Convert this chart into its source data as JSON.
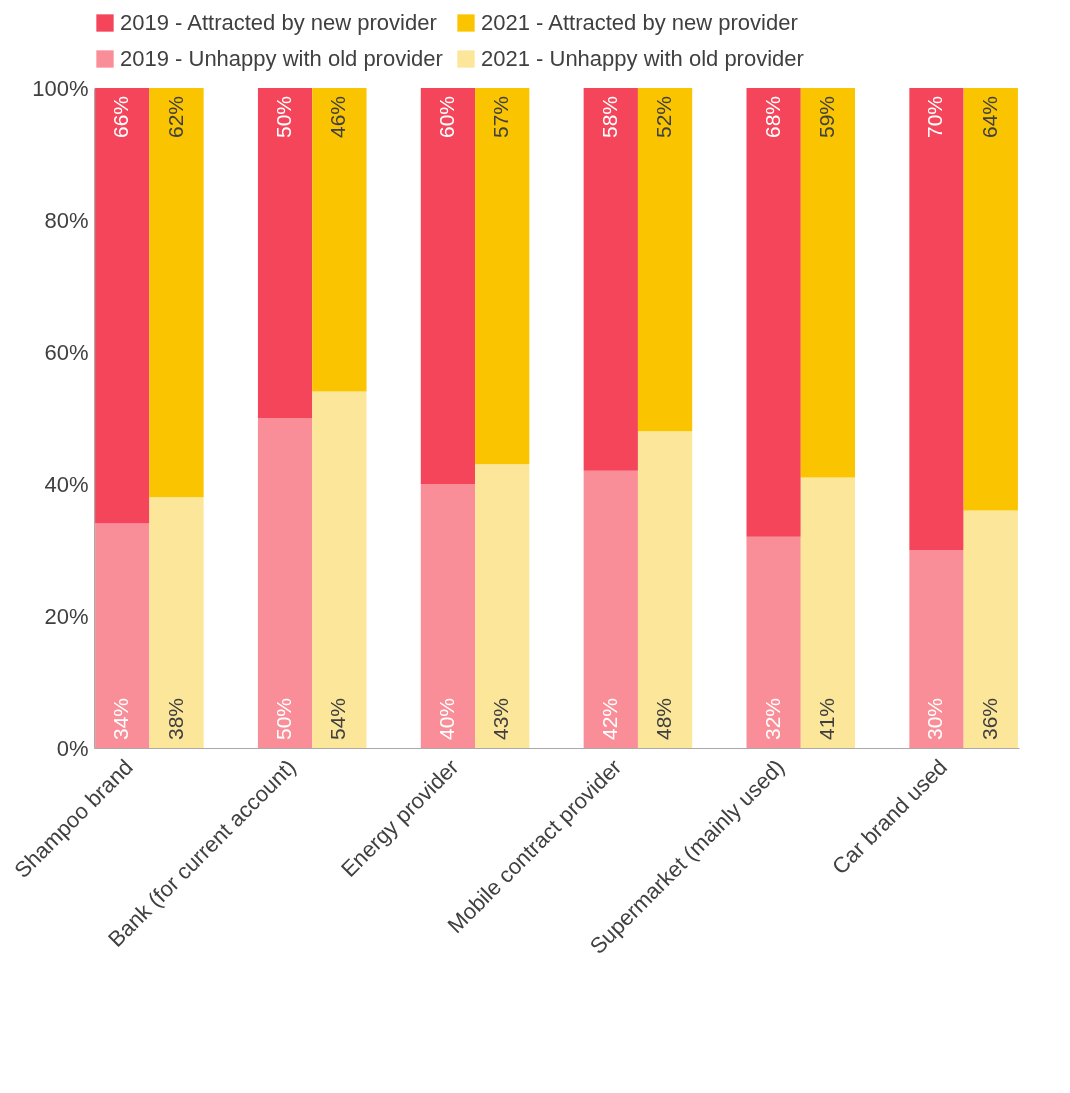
{
  "chart_data": {
    "type": "bar",
    "stacked": true,
    "legend": "top",
    "grid": false,
    "categories": [
      "Shampoo brand",
      null,
      null,
      "Bank (for current account)",
      null,
      null,
      "Energy provider",
      null,
      null,
      "Mobile contract provider",
      null,
      null,
      "Supermarket (mainly used)",
      null,
      null,
      "Car brand used",
      null
    ],
    "ylim": [
      0,
      100
    ],
    "yticks": [
      {
        "value": 0,
        "label": "0%"
      },
      {
        "value": 20,
        "label": "20%"
      },
      {
        "value": 40,
        "label": "40%"
      },
      {
        "value": 60,
        "label": "60%"
      },
      {
        "value": 80,
        "label": "80%"
      },
      {
        "value": 100,
        "label": "100%"
      }
    ],
    "series": [
      {
        "name": "2019 - Unhappy with old provider",
        "color": "#f98e98",
        "values": [
          34,
          null,
          null,
          50,
          null,
          null,
          40,
          null,
          null,
          42,
          null,
          null,
          32,
          null,
          null,
          30,
          null
        ],
        "value_labels": [
          "34%",
          null,
          null,
          "50%",
          null,
          null,
          "40%",
          null,
          null,
          "42%",
          null,
          null,
          "32%",
          null,
          null,
          "30%",
          null
        ]
      },
      {
        "name": "2019 - Attracted by new provider",
        "color": "#f5455a",
        "values": [
          66,
          null,
          null,
          50,
          null,
          null,
          60,
          null,
          null,
          58,
          null,
          null,
          68,
          null,
          null,
          70,
          null
        ],
        "value_labels": [
          "66%",
          null,
          null,
          "50%",
          null,
          null,
          "60%",
          null,
          null,
          "58%",
          null,
          null,
          "68%",
          null,
          null,
          "70%",
          null
        ]
      },
      {
        "name": "2021 - Unhappy with old provider",
        "color": "#fce699",
        "values": [
          null,
          38,
          null,
          null,
          54,
          null,
          null,
          43,
          null,
          null,
          48,
          null,
          null,
          41,
          null,
          null,
          36
        ],
        "value_labels": [
          null,
          "38%",
          null,
          null,
          "54%",
          null,
          null,
          "43%",
          null,
          null,
          "48%",
          null,
          null,
          "41%",
          null,
          null,
          "36%"
        ]
      },
      {
        "name": "2021 - Attracted by new provider",
        "color": "#fac500",
        "values": [
          null,
          62,
          null,
          null,
          46,
          null,
          null,
          57,
          null,
          null,
          52,
          null,
          null,
          59,
          null,
          null,
          64
        ],
        "value_labels": [
          null,
          "62%",
          null,
          null,
          "46%",
          null,
          null,
          "57%",
          null,
          null,
          "52%",
          null,
          null,
          "59%",
          null,
          null,
          "64%"
        ]
      }
    ]
  }
}
